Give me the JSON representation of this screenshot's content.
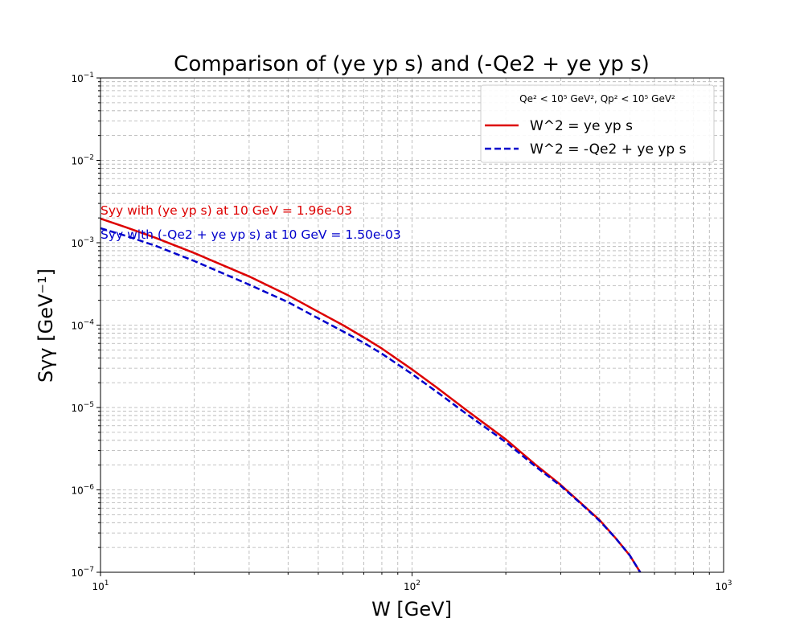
{
  "chart_data": {
    "type": "line",
    "title": "Comparison of (ye yp s) and (-Qe2 + ye yp s)",
    "xlabel": "W [GeV]",
    "ylabel": "Sγγ [GeV⁻¹]",
    "x_scale": "log",
    "y_scale": "log",
    "xlim": [
      10,
      1000
    ],
    "ylim": [
      1e-07,
      0.1
    ],
    "grid": true,
    "x_ticks": [
      {
        "base": "10",
        "exp": "1",
        "value": 10
      },
      {
        "base": "10",
        "exp": "2",
        "value": 100
      },
      {
        "base": "10",
        "exp": "3",
        "value": 1000
      }
    ],
    "y_ticks": [
      {
        "base": "10",
        "exp": "−7",
        "value": 1e-07
      },
      {
        "base": "10",
        "exp": "−6",
        "value": 1e-06
      },
      {
        "base": "10",
        "exp": "−5",
        "value": 1e-05
      },
      {
        "base": "10",
        "exp": "−4",
        "value": 0.0001
      },
      {
        "base": "10",
        "exp": "−3",
        "value": 0.001
      },
      {
        "base": "10",
        "exp": "−2",
        "value": 0.01
      },
      {
        "base": "10",
        "exp": "−1",
        "value": 0.1
      }
    ],
    "legend": {
      "placement": "top-right",
      "title": "Qe² < 10⁵ GeV², Qp² < 10⁵ GeV²"
    },
    "series": [
      {
        "name": "W^2 = ye yp s",
        "color": "#dd0000",
        "style": "solid",
        "points": [
          [
            10,
            0.00196
          ],
          [
            12,
            0.00155
          ],
          [
            15,
            0.00115
          ],
          [
            20,
            0.00075
          ],
          [
            30,
            0.00039
          ],
          [
            40,
            0.00023
          ],
          [
            50,
            0.000145
          ],
          [
            60,
            0.0001
          ],
          [
            70,
            7.1e-05
          ],
          [
            80,
            5.2e-05
          ],
          [
            100,
            2.9e-05
          ],
          [
            120,
            1.75e-05
          ],
          [
            150,
            9.2e-06
          ],
          [
            200,
            4.1e-06
          ],
          [
            250,
            2e-06
          ],
          [
            300,
            1.15e-06
          ],
          [
            350,
            6.8e-07
          ],
          [
            400,
            4.3e-07
          ],
          [
            450,
            2.6e-07
          ],
          [
            500,
            1.6e-07
          ],
          [
            540,
            1e-07
          ]
        ]
      },
      {
        "name": "W^2 = -Qe2 + ye yp s",
        "color": "#0000cc",
        "style": "dashed",
        "points": [
          [
            10,
            0.0015
          ],
          [
            12,
            0.00122
          ],
          [
            15,
            0.00092
          ],
          [
            20,
            0.0006
          ],
          [
            30,
            0.00031
          ],
          [
            40,
            0.00019
          ],
          [
            50,
            0.000121
          ],
          [
            60,
            8.4e-05
          ],
          [
            70,
            6.1e-05
          ],
          [
            80,
            4.5e-05
          ],
          [
            100,
            2.55e-05
          ],
          [
            120,
            1.55e-05
          ],
          [
            150,
            8.3e-06
          ],
          [
            200,
            3.8e-06
          ],
          [
            250,
            1.9e-06
          ],
          [
            300,
            1.12e-06
          ],
          [
            350,
            6.7e-07
          ],
          [
            400,
            4.2e-07
          ],
          [
            450,
            2.6e-07
          ],
          [
            500,
            1.6e-07
          ],
          [
            540,
            1e-07
          ]
        ]
      }
    ],
    "annotations": [
      {
        "text": "Syy with (ye yp s) at 10 GeV =  1.96e-03",
        "color": "#dd0000"
      },
      {
        "text": "Syy with (-Qe2 + ye yp s) at 10 GeV =  1.50e-03",
        "color": "#0000cc"
      }
    ]
  }
}
